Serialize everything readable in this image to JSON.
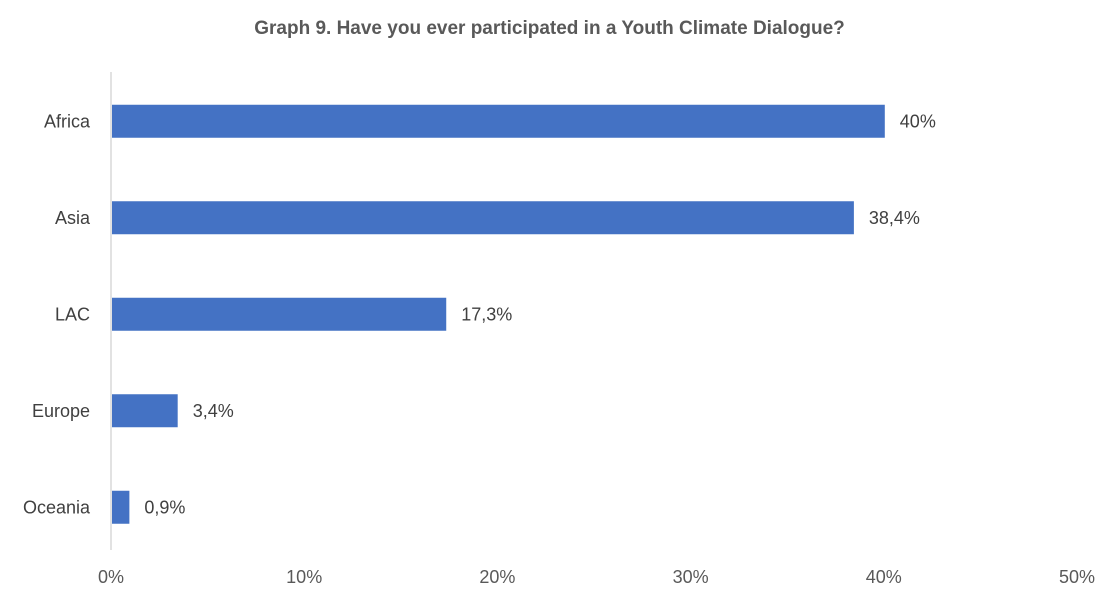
{
  "chart_data": {
    "type": "bar",
    "orientation": "horizontal",
    "title": "Graph 9. Have you ever participated in a Youth Climate Dialogue?",
    "categories": [
      "Africa",
      "Asia",
      "LAC",
      "Europe",
      "Oceania"
    ],
    "values": [
      40,
      38.4,
      17.3,
      3.4,
      0.9
    ],
    "value_labels": [
      "40%",
      "38,4%",
      "17,3%",
      "3,4%",
      "0,9%"
    ],
    "xlim": [
      0,
      50
    ],
    "xticks": [
      0,
      10,
      20,
      30,
      40,
      50
    ],
    "xtick_labels": [
      "0%",
      "10%",
      "20%",
      "30%",
      "40%",
      "50%"
    ],
    "xlabel": "",
    "ylabel": "",
    "grid": false,
    "bar_color": "#4472C4"
  }
}
